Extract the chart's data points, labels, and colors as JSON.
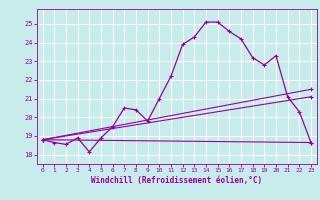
{
  "xlabel": "Windchill (Refroidissement éolien,°C)",
  "bg_color": "#c8ecec",
  "grid_color": "#ffffff",
  "line_color": "#990099",
  "xlim": [
    -0.5,
    23.5
  ],
  "ylim": [
    17.5,
    25.8
  ],
  "yticks": [
    18,
    19,
    20,
    21,
    22,
    23,
    24,
    25
  ],
  "xticks": [
    0,
    1,
    2,
    3,
    4,
    5,
    6,
    7,
    8,
    9,
    10,
    11,
    12,
    13,
    14,
    15,
    16,
    17,
    18,
    19,
    20,
    21,
    22,
    23
  ],
  "line1_x": [
    0,
    1,
    2,
    3,
    4,
    5,
    6,
    7,
    8,
    9,
    10,
    11,
    12,
    13,
    14,
    15,
    16,
    17,
    18,
    19,
    20,
    21,
    22,
    23
  ],
  "line1_y": [
    18.8,
    18.65,
    18.55,
    18.9,
    18.15,
    18.9,
    19.5,
    20.5,
    20.4,
    19.8,
    21.0,
    22.2,
    23.9,
    24.3,
    25.1,
    25.1,
    24.6,
    24.2,
    23.2,
    22.8,
    23.3,
    21.1,
    20.3,
    18.65
  ],
  "line2_x": [
    0,
    23
  ],
  "line2_y": [
    18.8,
    18.65
  ],
  "line3_x": [
    0,
    23
  ],
  "line3_y": [
    18.8,
    21.5
  ],
  "line4_x": [
    0,
    23
  ],
  "line4_y": [
    18.8,
    21.1
  ]
}
